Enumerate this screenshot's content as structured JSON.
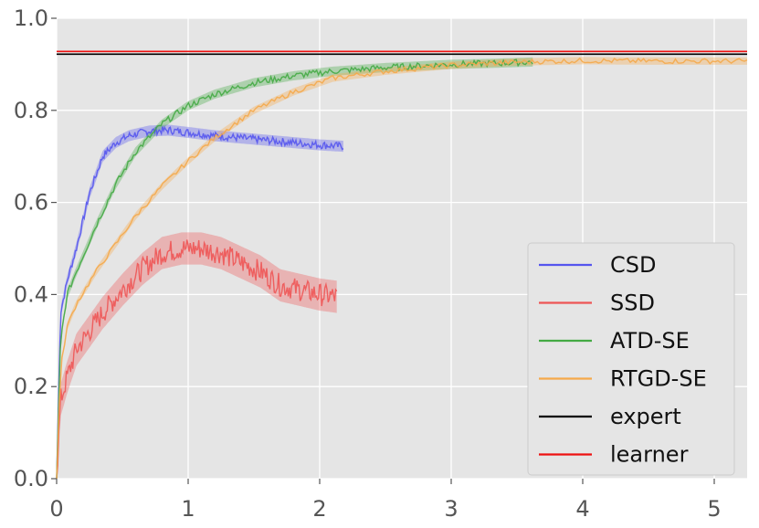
{
  "chart_data": {
    "type": "line",
    "title": "",
    "xlabel": "",
    "ylabel": "",
    "xlim": [
      0,
      5.25
    ],
    "ylim": [
      0,
      1.0
    ],
    "xticks": [
      "0",
      "1",
      "2",
      "3",
      "4",
      "5"
    ],
    "yticks": [
      "0.0",
      "0.2",
      "0.4",
      "0.6",
      "0.8",
      "1.0"
    ],
    "xtick_values": [
      0,
      1,
      2,
      3,
      4,
      5
    ],
    "ytick_values": [
      0.0,
      0.2,
      0.4,
      0.6,
      0.8,
      1.0
    ],
    "grid": true,
    "legend_position": "lower-right",
    "series": [
      {
        "name": "CSD",
        "color": "#5555ee",
        "x": [
          0,
          0.03,
          0.08,
          0.15,
          0.25,
          0.35,
          0.45,
          0.55,
          0.7,
          0.85,
          1.0,
          1.2,
          1.4,
          1.6,
          1.8,
          2.0,
          2.18
        ],
        "y": [
          0.0,
          0.36,
          0.43,
          0.5,
          0.62,
          0.7,
          0.73,
          0.745,
          0.755,
          0.757,
          0.752,
          0.745,
          0.74,
          0.735,
          0.73,
          0.725,
          0.722
        ],
        "band": 0.012
      },
      {
        "name": "SSD",
        "color": "#ee5555",
        "x": [
          0,
          0.03,
          0.08,
          0.15,
          0.25,
          0.35,
          0.5,
          0.65,
          0.8,
          0.95,
          1.1,
          1.25,
          1.4,
          1.55,
          1.7,
          1.85,
          2.0,
          2.13
        ],
        "y": [
          0.0,
          0.17,
          0.22,
          0.28,
          0.32,
          0.36,
          0.41,
          0.455,
          0.49,
          0.5,
          0.5,
          0.49,
          0.47,
          0.45,
          0.42,
          0.41,
          0.4,
          0.395
        ],
        "band": 0.035
      },
      {
        "name": "ATD-SE",
        "color": "#44aa44",
        "x": [
          0,
          0.03,
          0.08,
          0.15,
          0.3,
          0.45,
          0.6,
          0.8,
          1.0,
          1.2,
          1.5,
          1.8,
          2.1,
          2.5,
          3.0,
          3.3,
          3.62
        ],
        "y": [
          0.0,
          0.3,
          0.4,
          0.45,
          0.55,
          0.64,
          0.71,
          0.77,
          0.81,
          0.835,
          0.86,
          0.875,
          0.885,
          0.893,
          0.9,
          0.902,
          0.905
        ],
        "band": 0.01
      },
      {
        "name": "RTGD-SE",
        "color": "#f5a94a",
        "x": [
          0,
          0.03,
          0.08,
          0.15,
          0.3,
          0.45,
          0.6,
          0.8,
          1.0,
          1.2,
          1.5,
          1.8,
          2.1,
          2.5,
          3.0,
          3.5,
          4.0,
          4.5,
          5.0,
          5.25
        ],
        "y": [
          0.0,
          0.24,
          0.33,
          0.38,
          0.45,
          0.51,
          0.57,
          0.635,
          0.69,
          0.74,
          0.8,
          0.84,
          0.87,
          0.885,
          0.898,
          0.905,
          0.908,
          0.907,
          0.907,
          0.907
        ],
        "band": 0.008
      },
      {
        "name": "expert",
        "color": "#000000",
        "hline": 0.922
      },
      {
        "name": "learner",
        "color": "#ee1111",
        "hline": 0.928
      }
    ]
  }
}
